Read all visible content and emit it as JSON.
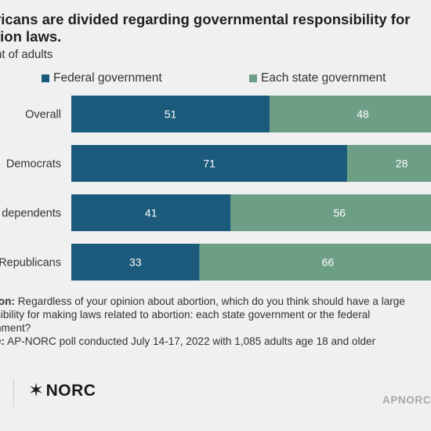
{
  "title_line1": "ricans are divided regarding governmental responsibility for",
  "title_line2": "tion laws.",
  "subtitle": "nt of adults",
  "legend": {
    "federal": "Federal government",
    "state": "Each state government"
  },
  "colors": {
    "federal": "#1b5a7b",
    "state": "#6c9f85"
  },
  "chart_data": {
    "type": "bar",
    "orientation": "horizontal",
    "stacked": true,
    "categories": [
      "Overall",
      "Democrats",
      "dependents",
      "Republicans"
    ],
    "series": [
      {
        "name": "Federal government",
        "values": [
          51,
          71,
          41,
          33
        ]
      },
      {
        "name": "Each state government",
        "values": [
          48,
          28,
          56,
          66
        ]
      }
    ],
    "xlim": [
      0,
      100
    ],
    "grid": false,
    "legend_position": "top"
  },
  "footnote": {
    "q_label": "ion:",
    "q_text1": "Regardless of your opinion about abortion, which do you think should have a large",
    "q_text2": "sibility for making laws related to abortion: each state government or the federal",
    "q_text3": "nment?",
    "src_label": "e:",
    "src_text": "AP-NORC poll conducted July 14-17, 2022 with 1,085 adults age 18 and older"
  },
  "logo": "NORC",
  "site": "APNORC."
}
